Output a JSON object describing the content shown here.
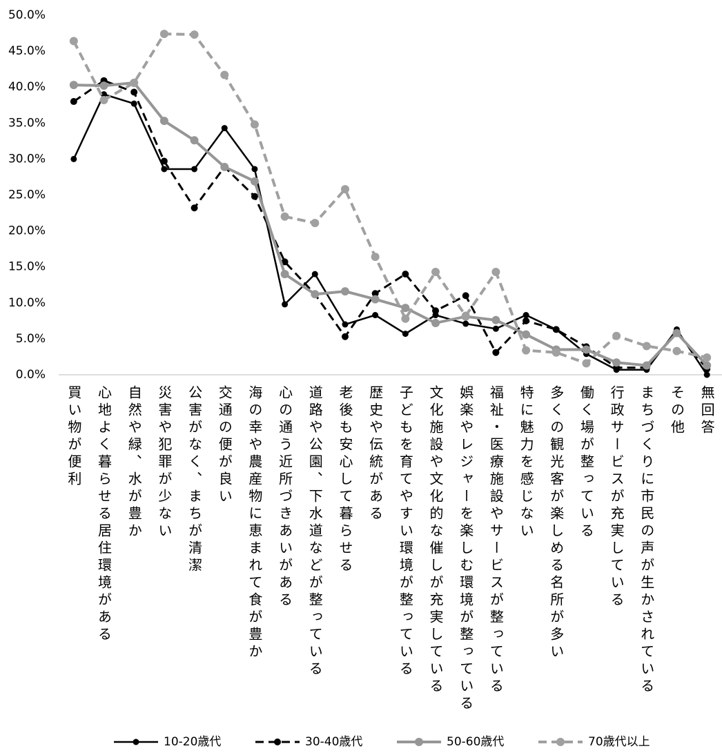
{
  "chart_data": {
    "type": "line",
    "categories": [
      "買い物が便利",
      "心地よく暮らせる居住環境がある",
      "自然や緑、水が豊か",
      "災害や犯罪が少ない",
      "公害がなく、まちが清潔",
      "交通の便が良い",
      "海の幸や農産物に恵まれて食が豊か",
      "心の通う近所づきあいがある",
      "道路や公園、下水道などが整っている",
      "老後も安心して暮らせる",
      "歴史や伝統がある",
      "子どもを育てやすい環境が整っている",
      "文化施設や文化的な催しが充実している",
      "娯楽やレジャーを楽しむ環境が整っている",
      "福祉・医療施設やサービスが整っている",
      "特に魅力を感じない",
      "多くの観光客が楽しめる名所が多い",
      "働く場が整っている",
      "行政サービスが充実している",
      "まちづくりに市民の声が生かされている",
      "その他",
      "無回答"
    ],
    "series": [
      {
        "name": "10-20歳代",
        "color": "#000000",
        "dashed": false,
        "line_width": 2.5,
        "values": [
          30.0,
          39.0,
          37.7,
          28.6,
          28.6,
          34.3,
          28.6,
          9.8,
          14.0,
          7.0,
          8.3,
          5.7,
          8.3,
          7.1,
          6.4,
          8.3,
          6.3,
          2.9,
          0.7,
          0.7,
          6.3,
          0.0
        ]
      },
      {
        "name": "30-40歳代",
        "color": "#000000",
        "dashed": true,
        "line_width": 3,
        "values": [
          38.0,
          40.9,
          39.3,
          29.7,
          23.2,
          28.9,
          24.8,
          15.7,
          11.2,
          5.3,
          11.3,
          14.0,
          8.9,
          11.0,
          3.1,
          7.5,
          6.3,
          3.9,
          1.0,
          1.0,
          6.0,
          0.8
        ]
      },
      {
        "name": "50-60歳代",
        "color": "#969696",
        "dashed": false,
        "line_width": 4,
        "values": [
          40.3,
          40.2,
          40.6,
          35.3,
          32.6,
          28.9,
          26.9,
          14.0,
          11.2,
          11.6,
          10.5,
          9.3,
          7.2,
          8.1,
          7.6,
          5.6,
          3.5,
          3.5,
          1.7,
          1.3,
          5.8,
          1.3
        ]
      },
      {
        "name": "70歳代以上",
        "color": "#a0a0a0",
        "dashed": true,
        "line_width": 4,
        "values": [
          46.4,
          38.2,
          40.6,
          47.4,
          47.3,
          41.7,
          34.8,
          22.0,
          21.1,
          25.8,
          16.4,
          7.8,
          14.3,
          8.2,
          14.3,
          3.4,
          3.1,
          1.6,
          5.4,
          4.0,
          3.3,
          2.4
        ]
      }
    ],
    "ylim": [
      0,
      50
    ],
    "yticks": [
      {
        "value": 0,
        "label": "0.0%"
      },
      {
        "value": 5,
        "label": "5.0%"
      },
      {
        "value": 10,
        "label": "10.0%"
      },
      {
        "value": 15,
        "label": "15.0%"
      },
      {
        "value": 20,
        "label": "20.0%"
      },
      {
        "value": 25,
        "label": "25.0%"
      },
      {
        "value": 30,
        "label": "30.0%"
      },
      {
        "value": 35,
        "label": "35.0%"
      },
      {
        "value": 40,
        "label": "40.0%"
      },
      {
        "value": 45,
        "label": "45.0%"
      },
      {
        "value": 50,
        "label": "50.0%"
      }
    ],
    "grid": false,
    "legend": "bottom"
  }
}
